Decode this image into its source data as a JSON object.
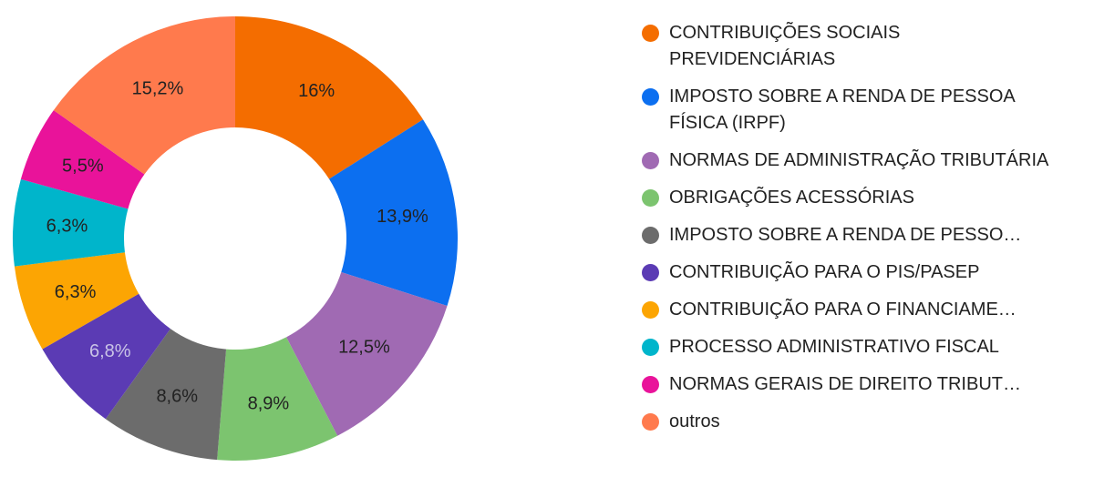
{
  "chart_data": {
    "type": "pie",
    "donut": true,
    "legend_position": "right",
    "slices": [
      {
        "label": "CONTRIBUIÇÕES SOCIAIS PREVIDENCIÁRIAS",
        "value": 16,
        "value_label": "16%",
        "color": "#f46d00",
        "label_color": "#222222"
      },
      {
        "label": "IMPOSTO SOBRE A RENDA DE PESSOA FÍSICA (IRPF)",
        "value": 13.9,
        "value_label": "13,9%",
        "color": "#0c6ff0",
        "label_color": "#222222"
      },
      {
        "label": "NORMAS DE ADMINISTRAÇÃO TRIBUTÁRIA",
        "value": 12.5,
        "value_label": "12,5%",
        "color": "#a06ab3",
        "label_color": "#222222"
      },
      {
        "label": "OBRIGAÇÕES ACESSÓRIAS",
        "value": 8.9,
        "value_label": "8,9%",
        "color": "#7cc46f",
        "label_color": "#222222"
      },
      {
        "label": "IMPOSTO SOBRE A RENDA DE PESSO…",
        "value": 8.6,
        "value_label": "8,6%",
        "color": "#6c6c6c",
        "label_color": "#222222"
      },
      {
        "label": "CONTRIBUIÇÃO PARA O PIS/PASEP",
        "value": 6.8,
        "value_label": "6,8%",
        "color": "#5b3bb4",
        "label_color": "#c9c3e6"
      },
      {
        "label": "CONTRIBUIÇÃO PARA O FINANCIAME…",
        "value": 6.3,
        "value_label": "6,3%",
        "color": "#fca503",
        "label_color": "#222222"
      },
      {
        "label": "PROCESSO ADMINISTRATIVO FISCAL",
        "value": 6.3,
        "value_label": "6,3%",
        "color": "#00b5cb",
        "label_color": "#222222"
      },
      {
        "label": "NORMAS GERAIS DE DIREITO TRIBUT…",
        "value": 5.5,
        "value_label": "5,5%",
        "color": "#e9139a",
        "label_color": "#222222"
      },
      {
        "label": "outros",
        "value": 15.2,
        "value_label": "15,2%",
        "color": "#ff7a4d",
        "label_color": "#222222"
      }
    ]
  }
}
